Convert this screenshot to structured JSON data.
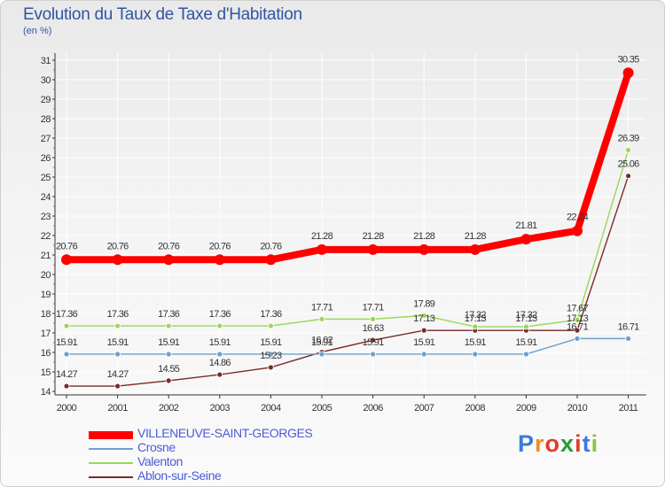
{
  "title": "Evolution du Taux de Taxe d'Habitation",
  "subtitle": "(en %)",
  "brand": {
    "letters": [
      "P",
      "r",
      "o",
      "x",
      "i",
      "t",
      "i"
    ],
    "colors": [
      "#3b7bd8",
      "#f28c1c",
      "#e23c2a",
      "#2c9a3a",
      "#e23c2a",
      "#3b7bd8",
      "#8bc43f"
    ]
  },
  "chart_data": {
    "type": "line",
    "title": "Evolution du Taux de Taxe d'Habitation",
    "ylabel": "(en %)",
    "xlabel": "",
    "categories": [
      "2000",
      "2001",
      "2002",
      "2003",
      "2004",
      "2005",
      "2006",
      "2007",
      "2008",
      "2009",
      "2010",
      "2011"
    ],
    "ylim": [
      14,
      31
    ],
    "yticks": [
      "14",
      "15",
      "16",
      "17",
      "18",
      "19",
      "20",
      "21",
      "22",
      "23",
      "24",
      "25",
      "26",
      "27",
      "28",
      "29",
      "30",
      "31"
    ],
    "series": [
      {
        "name": "VILLENEUVE-SAINT-GEORGES",
        "color": "#ff0000",
        "values": [
          20.76,
          20.76,
          20.76,
          20.76,
          20.76,
          21.28,
          21.28,
          21.28,
          21.28,
          21.81,
          22.24,
          30.35
        ],
        "labels": [
          "20.76",
          "20.76",
          "20.76",
          "20.76",
          "20.76",
          "21.28",
          "21.28",
          "21.28",
          "21.28",
          "21.81",
          "22.24",
          "30.35"
        ]
      },
      {
        "name": "Crosne",
        "color": "#6c9fcf",
        "values": [
          15.91,
          15.91,
          15.91,
          15.91,
          15.91,
          15.91,
          15.91,
          15.91,
          15.91,
          15.91,
          16.71,
          16.71
        ],
        "labels": [
          "15.91",
          "15.91",
          "15.91",
          "15.91",
          "15.91",
          "15.91",
          "15.91",
          "15.91",
          "15.91",
          "15.91",
          "16.71",
          "16.71"
        ]
      },
      {
        "name": "Valenton",
        "color": "#97d85a",
        "values": [
          17.36,
          17.36,
          17.36,
          17.36,
          17.36,
          17.71,
          17.71,
          17.89,
          17.32,
          17.32,
          17.67,
          26.39
        ],
        "labels": [
          "17.36",
          "17.36",
          "17.36",
          "17.36",
          "17.36",
          "17.71",
          "17.71",
          "17.89",
          "17.32",
          "17.32",
          "17.67",
          "26.39"
        ]
      },
      {
        "name": "Ablon-sur-Seine",
        "color": "#7a2a2a",
        "values": [
          14.27,
          14.27,
          14.55,
          14.86,
          15.23,
          16.02,
          16.63,
          17.13,
          17.13,
          17.13,
          17.13,
          25.06
        ],
        "labels": [
          "14.27",
          "14.27",
          "14.55",
          "14.86",
          "15.23",
          "16.02",
          "16.63",
          "17.13",
          "17.13",
          "17.13",
          "17.13",
          "25.06"
        ]
      }
    ]
  }
}
